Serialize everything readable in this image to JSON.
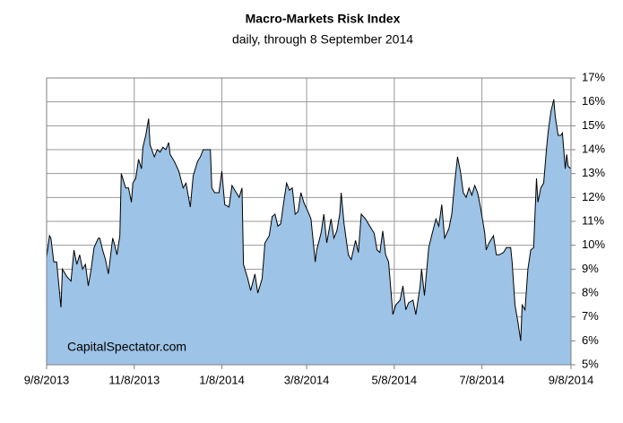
{
  "chart_data": {
    "type": "area",
    "title": "Macro-Markets Risk Index",
    "subtitle": "daily, through 8 September 2014",
    "annotation": "CapitalSpectator.com",
    "color": "#9dc3e6",
    "line_color": "#000000",
    "grid": true,
    "x": [
      "2013-09-08",
      "2013-09-10",
      "2013-09-11",
      "2013-09-13",
      "2013-09-15",
      "2013-09-18",
      "2013-09-19",
      "2013-09-22",
      "2013-09-25",
      "2013-09-27",
      "2013-09-29",
      "2013-10-01",
      "2013-10-03",
      "2013-10-05",
      "2013-10-07",
      "2013-10-09",
      "2013-10-11",
      "2013-10-14",
      "2013-10-15",
      "2013-10-17",
      "2013-10-19",
      "2013-10-21",
      "2013-10-24",
      "2013-10-25",
      "2013-10-27",
      "2013-10-29",
      "2013-10-30",
      "2013-11-02",
      "2013-11-04",
      "2013-11-06",
      "2013-11-07",
      "2013-11-09",
      "2013-11-11",
      "2013-11-13",
      "2013-11-14",
      "2013-11-16",
      "2013-11-18",
      "2013-11-19",
      "2013-11-22",
      "2013-11-24",
      "2013-11-26",
      "2013-11-28",
      "2013-11-30",
      "2013-12-02",
      "2013-12-03",
      "2013-12-06",
      "2013-12-09",
      "2013-12-12",
      "2013-12-14",
      "2013-12-17",
      "2013-12-19",
      "2013-12-22",
      "2013-12-24",
      "2013-12-26",
      "2013-12-31",
      "2014-01-01",
      "2014-01-03",
      "2014-01-06",
      "2014-01-08",
      "2014-01-10",
      "2014-01-13",
      "2014-01-15",
      "2014-01-18",
      "2014-01-20",
      "2014-01-22",
      "2014-01-23",
      "2014-01-26",
      "2014-01-28",
      "2014-01-31",
      "2014-02-02",
      "2014-02-05",
      "2014-02-07",
      "2014-02-10",
      "2014-02-12",
      "2014-02-14",
      "2014-02-16",
      "2014-02-18",
      "2014-02-20",
      "2014-02-22",
      "2014-02-24",
      "2014-02-26",
      "2014-02-28",
      "2014-03-02",
      "2014-03-04",
      "2014-03-06",
      "2014-03-09",
      "2014-03-11",
      "2014-03-14",
      "2014-03-15",
      "2014-03-18",
      "2014-03-20",
      "2014-03-22",
      "2014-03-25",
      "2014-03-27",
      "2014-03-29",
      "2014-03-31",
      "2014-04-01",
      "2014-04-03",
      "2014-04-06",
      "2014-04-08",
      "2014-04-11",
      "2014-04-13",
      "2014-04-15",
      "2014-04-18",
      "2014-04-20",
      "2014-04-22",
      "2014-04-24",
      "2014-04-26",
      "2014-04-28",
      "2014-04-30",
      "2014-05-02",
      "2014-05-04",
      "2014-05-07",
      "2014-05-09",
      "2014-05-12",
      "2014-05-14",
      "2014-05-16",
      "2014-05-18",
      "2014-05-21",
      "2014-05-23",
      "2014-05-26",
      "2014-05-27",
      "2014-05-29",
      "2014-06-01",
      "2014-06-03",
      "2014-06-06",
      "2014-06-08",
      "2014-06-10",
      "2014-06-12",
      "2014-06-15",
      "2014-06-17",
      "2014-06-19",
      "2014-06-21",
      "2014-06-23",
      "2014-06-25",
      "2014-06-27",
      "2014-06-29",
      "2014-07-01",
      "2014-07-03",
      "2014-07-05",
      "2014-07-07",
      "2014-07-10",
      "2014-07-11",
      "2014-07-13",
      "2014-07-16",
      "2014-07-18",
      "2014-07-20",
      "2014-07-23",
      "2014-07-25",
      "2014-07-28",
      "2014-07-29",
      "2014-07-31",
      "2014-08-02",
      "2014-08-04",
      "2014-08-05",
      "2014-08-07",
      "2014-08-09",
      "2014-08-11",
      "2014-08-13",
      "2014-08-15",
      "2014-08-16",
      "2014-08-18",
      "2014-08-20",
      "2014-08-22",
      "2014-08-23",
      "2014-08-25",
      "2014-08-27",
      "2014-08-28",
      "2014-08-30",
      "2014-09-01",
      "2014-09-02",
      "2014-09-04",
      "2014-09-05",
      "2014-09-06",
      "2014-09-08"
    ],
    "values": [
      9.5,
      10.4,
      10.3,
      9.3,
      9.3,
      7.4,
      9.0,
      8.7,
      8.5,
      9.8,
      9.2,
      9.6,
      9.0,
      9.2,
      8.3,
      9.0,
      9.9,
      10.3,
      10.3,
      9.8,
      9.4,
      8.8,
      10.3,
      10.1,
      9.6,
      10.4,
      13.0,
      12.4,
      12.4,
      11.8,
      12.6,
      12.8,
      13.6,
      13.2,
      14.1,
      14.6,
      15.3,
      14.2,
      13.7,
      14.0,
      13.9,
      14.1,
      14.0,
      14.3,
      13.8,
      13.5,
      13.1,
      12.4,
      12.6,
      11.6,
      12.9,
      13.5,
      13.7,
      14.0,
      14.0,
      12.4,
      12.2,
      12.2,
      13.1,
      11.7,
      11.6,
      12.5,
      12.2,
      12.0,
      12.4,
      9.2,
      8.6,
      8.1,
      8.8,
      8.0,
      8.6,
      10.1,
      10.4,
      11.2,
      11.3,
      10.8,
      10.9,
      11.8,
      12.6,
      12.3,
      12.4,
      11.3,
      11.4,
      12.2,
      11.8,
      11.4,
      11.1,
      9.3,
      9.8,
      10.5,
      11.3,
      10.1,
      11.1,
      10.3,
      10.6,
      11.3,
      12.2,
      10.9,
      9.6,
      9.4,
      10.2,
      9.7,
      11.3,
      11.1,
      10.9,
      10.7,
      10.5,
      9.8,
      9.7,
      10.6,
      9.6,
      9.3,
      7.1,
      7.5,
      7.7,
      8.3,
      7.3,
      7.6,
      7.7,
      7.1,
      8.3,
      9.0,
      7.9,
      9.9,
      10.4,
      11.1,
      10.8,
      11.7,
      10.3,
      10.7,
      11.3,
      12.6,
      13.7,
      13.1,
      12.2,
      12.0,
      12.4,
      12.1,
      12.5,
      12.2,
      11.6,
      10.5,
      9.8,
      10.1,
      10.4,
      9.6,
      9.6,
      9.7,
      9.9,
      9.9,
      9.3,
      7.5,
      6.8,
      6.0,
      7.5,
      7.3,
      9.0,
      9.8,
      9.9,
      12.8,
      11.8,
      12.4,
      12.6,
      14.1,
      14.7,
      15.6,
      16.1,
      15.4,
      14.6,
      14.6,
      14.7,
      13.2,
      13.8,
      13.3,
      13.2
    ],
    "xlim": [
      "2013-09-08",
      "2014-09-08"
    ],
    "xticks": [
      {
        "value": "2013-09-08",
        "label": "9/8/2013"
      },
      {
        "value": "2013-11-08",
        "label": "11/8/2013"
      },
      {
        "value": "2014-01-08",
        "label": "1/8/2014"
      },
      {
        "value": "2014-03-08",
        "label": "3/8/2014"
      },
      {
        "value": "2014-05-08",
        "label": "5/8/2014"
      },
      {
        "value": "2014-07-08",
        "label": "7/8/2014"
      },
      {
        "value": "2014-09-08",
        "label": "9/8/2014"
      }
    ],
    "ylim": [
      5,
      17
    ],
    "yticks": [
      {
        "value": 5,
        "label": "5%"
      },
      {
        "value": 6,
        "label": "6%"
      },
      {
        "value": 7,
        "label": "7%"
      },
      {
        "value": 8,
        "label": "8%"
      },
      {
        "value": 9,
        "label": "9%"
      },
      {
        "value": 10,
        "label": "10%"
      },
      {
        "value": 11,
        "label": "11%"
      },
      {
        "value": 12,
        "label": "12%"
      },
      {
        "value": 13,
        "label": "13%"
      },
      {
        "value": 14,
        "label": "14%"
      },
      {
        "value": 15,
        "label": "15%"
      },
      {
        "value": 16,
        "label": "16%"
      },
      {
        "value": 17,
        "label": "17%"
      }
    ]
  }
}
